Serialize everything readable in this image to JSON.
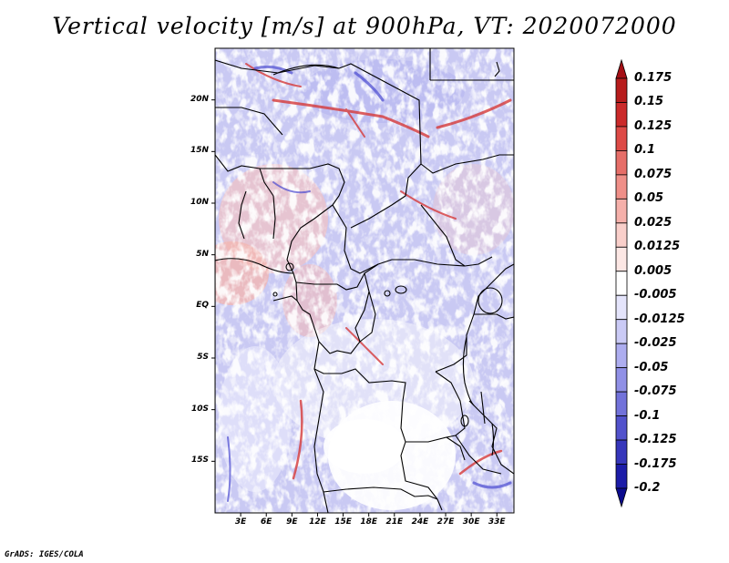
{
  "title": "Vertical velocity [m/s] at 900hPa, VT: 2020072000",
  "footer": "GrADS: IGES/COLA",
  "map": {
    "lon_range": [
      0,
      35
    ],
    "lat_range": [
      -20,
      25
    ],
    "lat_ticks": [
      "20N",
      "15N",
      "10N",
      "5N",
      "EQ",
      "5S",
      "10S",
      "15S"
    ],
    "lon_ticks": [
      "3E",
      "6E",
      "9E",
      "12E",
      "15E",
      "18E",
      "21E",
      "24E",
      "27E",
      "30E",
      "33E"
    ],
    "lat_tick_values": [
      20,
      15,
      10,
      5,
      0,
      -5,
      -10,
      -15
    ],
    "lon_tick_values": [
      3,
      6,
      9,
      12,
      15,
      18,
      21,
      24,
      27,
      30,
      33
    ]
  },
  "colorbar": {
    "labels": [
      "0.175",
      "0.15",
      "0.125",
      "0.1",
      "0.075",
      "0.05",
      "0.025",
      "0.0125",
      "0.005",
      "-0.005",
      "-0.0125",
      "-0.025",
      "-0.05",
      "-0.075",
      "-0.1",
      "-0.125",
      "-0.175",
      "-0.2"
    ],
    "colors": [
      "#a50f15",
      "#b71c1c",
      "#cb2a2a",
      "#dd4a46",
      "#e66e68",
      "#ef8f88",
      "#f5b0aa",
      "#f9cfca",
      "#fce7e4",
      "#ffffff",
      "#e4e4fb",
      "#cacaf5",
      "#adadef",
      "#9090e6",
      "#7272da",
      "#5252cc",
      "#3636bb",
      "#1c1ca8",
      "#0b0b8e"
    ]
  }
}
